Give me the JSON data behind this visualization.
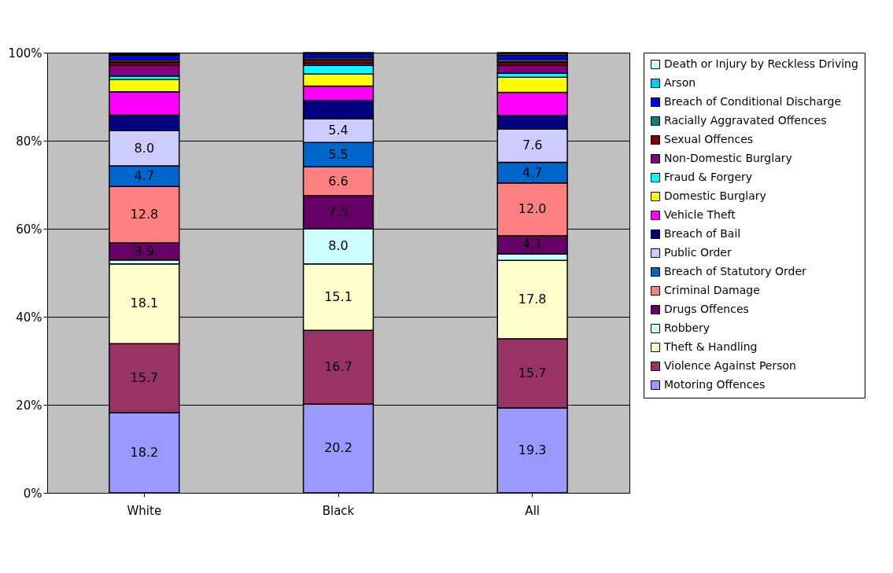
{
  "chart_data": {
    "type": "bar",
    "stacked": true,
    "categories": [
      "White",
      "Black",
      "All"
    ],
    "ylim": [
      0,
      100
    ],
    "yticks": [
      {
        "value": 0,
        "label": "0%"
      },
      {
        "value": 20,
        "label": "20%"
      },
      {
        "value": 40,
        "label": "40%"
      },
      {
        "value": 60,
        "label": "60%"
      },
      {
        "value": 80,
        "label": "80%"
      },
      {
        "value": 100,
        "label": "100%"
      }
    ],
    "grid": "y",
    "legend": "right",
    "series": [
      {
        "name": "Motoring Offences",
        "color": "#9999ff",
        "values": [
          18.2,
          20.2,
          19.3
        ],
        "value_labels": [
          "18.2",
          "20.2",
          "19.3"
        ]
      },
      {
        "name": "Violence Against Person",
        "color": "#993366",
        "values": [
          15.7,
          16.7,
          15.7
        ],
        "value_labels": [
          "15.7",
          "16.7",
          "15.7"
        ]
      },
      {
        "name": "Theft & Handling",
        "color": "#ffffcc",
        "values": [
          18.1,
          15.1,
          17.8
        ],
        "value_labels": [
          "18.1",
          "15.1",
          "17.8"
        ]
      },
      {
        "name": "Robbery",
        "color": "#ccffff",
        "values": [
          0.9,
          8.0,
          1.5
        ],
        "value_labels": [
          null,
          "8.0",
          null
        ]
      },
      {
        "name": "Drugs Offences",
        "color": "#660066",
        "values": [
          3.9,
          7.5,
          4.1
        ],
        "value_labels": [
          "3.9",
          "7.5",
          "4.1"
        ]
      },
      {
        "name": "Criminal Damage",
        "color": "#ff8080",
        "values": [
          12.8,
          6.6,
          12.0
        ],
        "value_labels": [
          "12.8",
          "6.6",
          "12.0"
        ]
      },
      {
        "name": "Breach of Statutory Order",
        "color": "#0066cc",
        "values": [
          4.7,
          5.5,
          4.7
        ],
        "value_labels": [
          "4.7",
          "5.5",
          "4.7"
        ]
      },
      {
        "name": "Public Order",
        "color": "#ccccff",
        "values": [
          8.0,
          5.4,
          7.6
        ],
        "value_labels": [
          "8.0",
          "5.4",
          "7.6"
        ]
      },
      {
        "name": "Breach of Bail",
        "color": "#000080",
        "values": [
          3.6,
          4.2,
          3.0
        ]
      },
      {
        "name": "Vehicle Theft",
        "color": "#ff00ff",
        "values": [
          5.2,
          3.2,
          5.3
        ]
      },
      {
        "name": "Domestic Burglary",
        "color": "#ffff00",
        "values": [
          2.8,
          2.8,
          3.4
        ]
      },
      {
        "name": "Fraud & Forgery",
        "color": "#00ffff",
        "values": [
          0.8,
          1.9,
          0.9
        ]
      },
      {
        "name": "Non-Domestic Burglary",
        "color": "#800080",
        "values": [
          2.4,
          0.6,
          1.8
        ]
      },
      {
        "name": "Sexual Offences",
        "color": "#800000",
        "values": [
          0.8,
          0.8,
          0.8
        ]
      },
      {
        "name": "Racially Aggravated Offences",
        "color": "#008080",
        "values": [
          0.5,
          0.4,
          0.6
        ]
      },
      {
        "name": "Breach of Conditional Discharge",
        "color": "#0000ff",
        "values": [
          1.0,
          0.7,
          0.9
        ]
      },
      {
        "name": "Arson",
        "color": "#00ccff",
        "values": [
          0.3,
          0.3,
          0.4
        ]
      },
      {
        "name": "Death or Injury by Reckless Driving",
        "color": "#ccffff",
        "values": [
          0.2,
          0.1,
          0.2
        ]
      }
    ]
  }
}
